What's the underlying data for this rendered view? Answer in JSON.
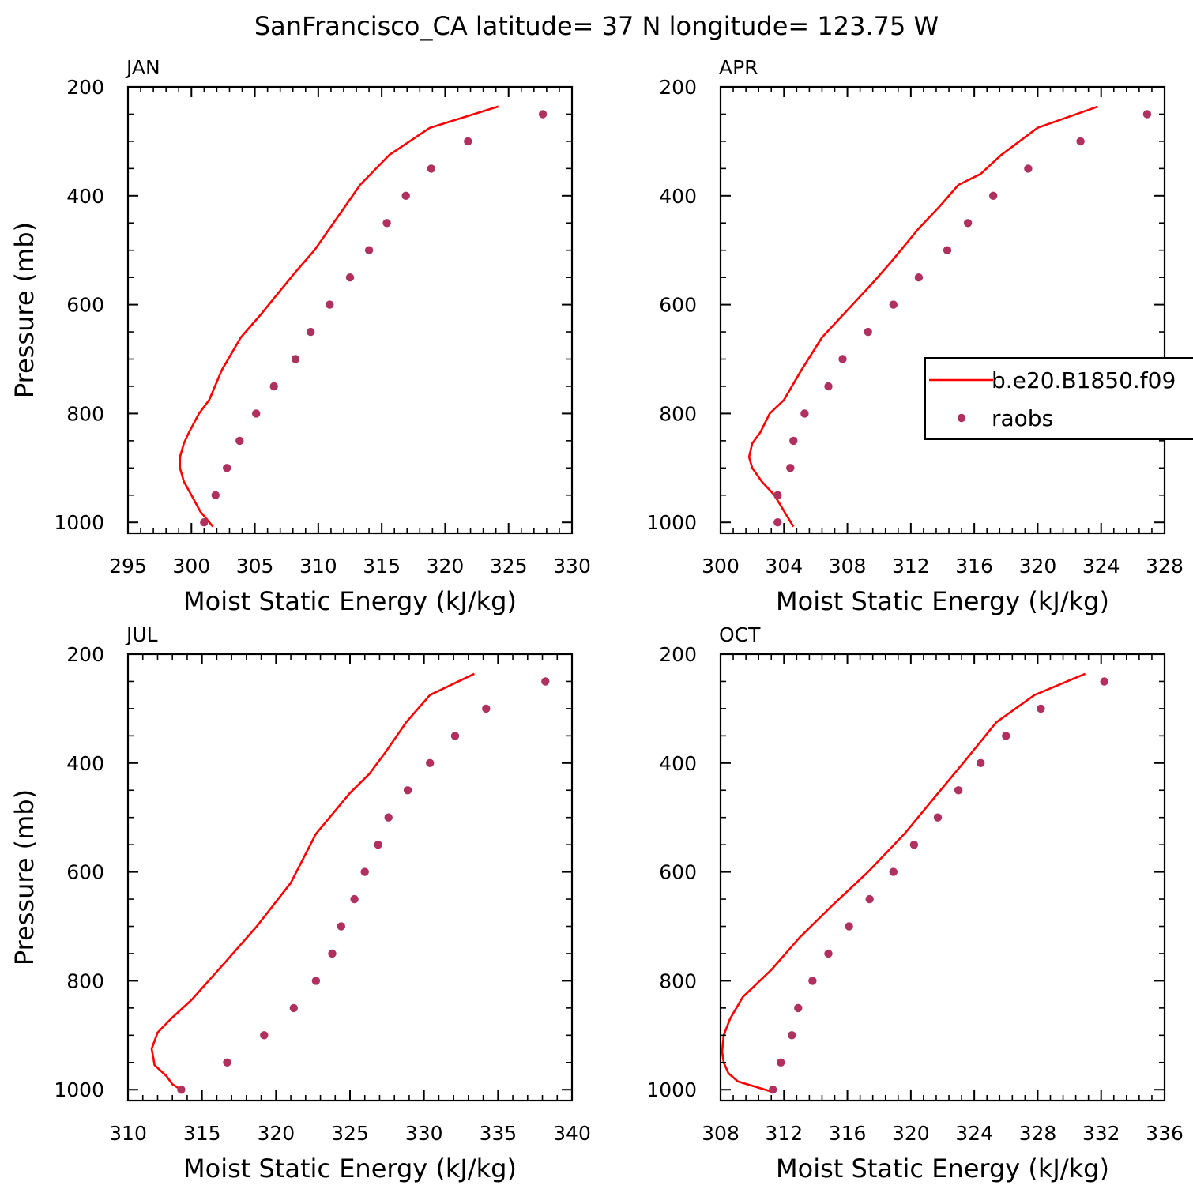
{
  "figure": {
    "title": "SanFrancisco_CA  latitude= 37 N longitude= 123.75 W",
    "legend": {
      "model_label": "b.e20.B1850.f09",
      "obs_label": "raobs",
      "placement": "right-middle of APR panel (clipped at figure edge)"
    },
    "colors": {
      "model": "#ff0000",
      "obs": "#b03060",
      "axes": "#000000"
    }
  },
  "chart_data": [
    {
      "type": "line",
      "panel": "JAN",
      "title": "JAN",
      "xlabel": "Moist Static Energy (kJ/kg)",
      "ylabel": "Pressure (mb)",
      "xlim": [
        295,
        330
      ],
      "ylim": [
        1020,
        200
      ],
      "xticks": [
        "295",
        "300",
        "305",
        "310",
        "315",
        "320",
        "325",
        "330"
      ],
      "yticks": [
        "200",
        "400",
        "600",
        "800",
        "1000"
      ],
      "series": [
        {
          "name": "b.e20.B1850.f09",
          "style": "line",
          "x": [
            324.2,
            318.8,
            315.6,
            313.3,
            311.2,
            309.7,
            308.2,
            306.8,
            305.4,
            303.9,
            302.4,
            301.4,
            300.6,
            299.8,
            299.4,
            299.1,
            299.1,
            299.4,
            300.0,
            300.7,
            301.7
          ],
          "y": [
            236,
            275,
            325,
            380,
            450,
            500,
            540,
            580,
            620,
            660,
            720,
            775,
            800,
            835,
            855,
            880,
            900,
            925,
            950,
            980,
            1008
          ]
        },
        {
          "name": "raobs",
          "style": "points",
          "x": [
            327.7,
            321.8,
            318.9,
            316.9,
            315.4,
            314.0,
            312.5,
            310.9,
            309.4,
            308.2,
            306.5,
            305.1,
            303.8,
            302.8,
            301.9,
            301.0
          ],
          "y": [
            250,
            300,
            350,
            400,
            450,
            500,
            550,
            600,
            650,
            700,
            750,
            800,
            850,
            900,
            950,
            1000
          ]
        }
      ]
    },
    {
      "type": "line",
      "panel": "APR",
      "title": "APR",
      "xlabel": "Moist Static Energy (kJ/kg)",
      "ylabel": "",
      "xlim": [
        300,
        328
      ],
      "ylim": [
        1020,
        200
      ],
      "xticks": [
        "300",
        "304",
        "308",
        "312",
        "316",
        "320",
        "324",
        "328"
      ],
      "yticks": [
        "200",
        "400",
        "600",
        "800",
        "1000"
      ],
      "series": [
        {
          "name": "b.e20.B1850.f09",
          "style": "line",
          "x": [
            323.8,
            320.0,
            317.7,
            316.4,
            315.0,
            313.8,
            312.5,
            310.8,
            309.6,
            308.0,
            306.4,
            305.1,
            304.0,
            303.1,
            302.5,
            302.0,
            301.8,
            302.0,
            302.6,
            303.4,
            304.6
          ],
          "y": [
            236,
            275,
            325,
            360,
            380,
            420,
            460,
            520,
            560,
            610,
            660,
            720,
            775,
            800,
            835,
            855,
            880,
            900,
            925,
            950,
            1008
          ]
        },
        {
          "name": "raobs",
          "style": "points",
          "x": [
            326.9,
            322.7,
            319.4,
            317.2,
            315.6,
            314.3,
            312.5,
            310.9,
            309.3,
            307.7,
            306.8,
            305.3,
            304.6,
            304.4,
            303.6,
            303.6
          ],
          "y": [
            250,
            300,
            350,
            400,
            450,
            500,
            550,
            600,
            650,
            700,
            750,
            800,
            850,
            900,
            950,
            1000
          ]
        }
      ]
    },
    {
      "type": "line",
      "panel": "JUL",
      "title": "JUL",
      "xlabel": "Moist Static Energy (kJ/kg)",
      "ylabel": "Pressure (mb)",
      "xlim": [
        310,
        340
      ],
      "ylim": [
        1020,
        200
      ],
      "xticks": [
        "310",
        "315",
        "320",
        "325",
        "330",
        "335",
        "340"
      ],
      "yticks": [
        "200",
        "400",
        "600",
        "800",
        "1000"
      ],
      "series": [
        {
          "name": "b.e20.B1850.f09",
          "style": "line",
          "x": [
            333.4,
            330.4,
            328.8,
            327.4,
            326.3,
            325.0,
            322.7,
            321.0,
            318.7,
            316.6,
            314.3,
            312.9,
            312.0,
            311.6,
            311.8,
            312.6,
            313.0,
            313.7
          ],
          "y": [
            236,
            275,
            325,
            380,
            420,
            455,
            530,
            620,
            700,
            765,
            835,
            870,
            895,
            925,
            955,
            975,
            990,
            1002
          ]
        },
        {
          "name": "raobs",
          "style": "points",
          "x": [
            338.2,
            334.2,
            332.1,
            330.4,
            328.9,
            327.6,
            326.9,
            326.0,
            325.3,
            324.4,
            323.8,
            322.7,
            321.2,
            319.2,
            316.7,
            313.6
          ],
          "y": [
            250,
            300,
            350,
            400,
            450,
            500,
            550,
            600,
            650,
            700,
            750,
            800,
            850,
            900,
            950,
            1000
          ]
        }
      ]
    },
    {
      "type": "line",
      "panel": "OCT",
      "title": "OCT",
      "xlabel": "Moist Static Energy (kJ/kg)",
      "ylabel": "",
      "xlim": [
        308,
        336
      ],
      "ylim": [
        1020,
        200
      ],
      "xticks": [
        "308",
        "312",
        "316",
        "320",
        "324",
        "328",
        "332",
        "336"
      ],
      "yticks": [
        "200",
        "400",
        "600",
        "800",
        "1000"
      ],
      "series": [
        {
          "name": "b.e20.B1850.f09",
          "style": "line",
          "x": [
            331.0,
            327.8,
            325.4,
            323.3,
            321.3,
            319.6,
            317.3,
            315.1,
            313.0,
            311.2,
            309.4,
            308.6,
            308.2,
            308.1,
            308.2,
            308.5,
            309.1,
            311.4
          ],
          "y": [
            236,
            275,
            325,
            400,
            470,
            530,
            600,
            660,
            720,
            780,
            830,
            870,
            900,
            930,
            950,
            970,
            985,
            1005
          ]
        },
        {
          "name": "raobs",
          "style": "points",
          "x": [
            332.2,
            328.2,
            326.0,
            324.4,
            323.0,
            321.7,
            320.2,
            318.9,
            317.4,
            316.1,
            314.8,
            313.8,
            312.9,
            312.5,
            311.8,
            311.3
          ],
          "y": [
            250,
            300,
            350,
            400,
            450,
            500,
            550,
            600,
            650,
            700,
            750,
            800,
            850,
            900,
            950,
            1000
          ]
        }
      ]
    }
  ]
}
